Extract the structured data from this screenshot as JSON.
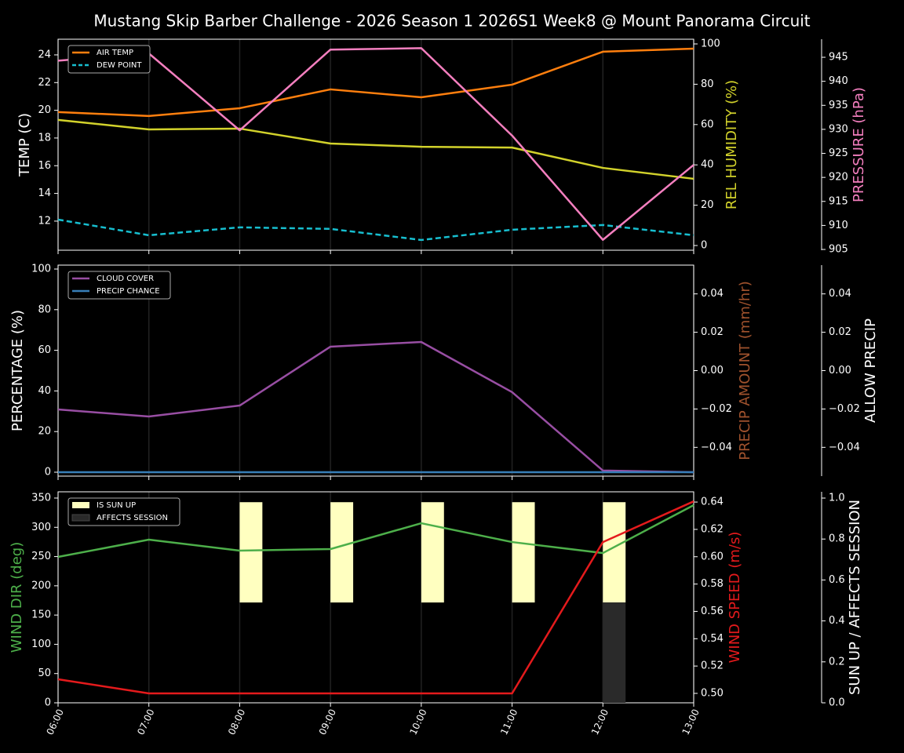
{
  "title": "Mustang Skip Barber Challenge - 2026 Season 1 2026S1 Week8 @ Mount Panorama Circuit",
  "chart_data": [
    {
      "type": "line",
      "legend": "upper left",
      "xgrid": true,
      "ylabel": "TEMP (C)",
      "ylabel_color": "#ffffff",
      "y2label": "REL HUMIDITY (%)",
      "y2label_color": "#d2d22b",
      "y3label": "PRESSURE (hPa)",
      "y3label_color": "#f47fbf",
      "ylim": [
        9.9,
        25.13
      ],
      "yticks": [
        12,
        14,
        16,
        18,
        20,
        22,
        24
      ],
      "y2lim": [
        -2.33,
        102.33
      ],
      "y2ticks": [
        0,
        20,
        40,
        60,
        80,
        100
      ],
      "y3lim": [
        904.84,
        948.76
      ],
      "y3ticks": [
        905,
        910,
        915,
        920,
        925,
        930,
        935,
        940,
        945
      ],
      "series": [
        {
          "name": "AIR TEMP",
          "color": "#ff7f0e",
          "values": [
            19.87,
            19.59,
            20.15,
            21.51,
            20.94,
            21.85,
            24.23,
            24.45
          ]
        },
        {
          "name": "DEW POINT",
          "color": "#17becf",
          "dash": true,
          "values": [
            12.11,
            10.98,
            11.55,
            11.44,
            10.64,
            11.38,
            11.72,
            10.98
          ]
        },
        {
          "color": "#d2d22b",
          "axis": "y2",
          "values": [
            62.3,
            57.6,
            58.0,
            50.6,
            49.0,
            48.6,
            38.5,
            33.1
          ]
        },
        {
          "color": "#f47fbf",
          "axis": "y3",
          "values": [
            944.3,
            945.8,
            929.8,
            946.6,
            946.9,
            928.7,
            907.0,
            922.6
          ]
        }
      ]
    },
    {
      "type": "line",
      "legend": "upper left",
      "xgrid": true,
      "ylabel": "PERCENTAGE (%)",
      "ylabel_color": "#ffffff",
      "y2label": "PRECIP AMOUNT (mm/hr)",
      "y2label_color": "#a0522d",
      "y3label": "ALLOW PRECIP",
      "y3label_color": "#ffffff",
      "ylim": [
        -1.93,
        101.93
      ],
      "yticks": [
        0,
        20,
        40,
        60,
        80,
        100
      ],
      "y2lim": [
        -0.055,
        0.055
      ],
      "y2ticks": [
        {
          "value": -0.04,
          "label": "−0.04"
        },
        {
          "value": -0.02,
          "label": "−0.02"
        },
        {
          "value": 0,
          "label": "0.00"
        },
        0.02,
        0.04
      ],
      "y3lim": [
        -0.055,
        0.055
      ],
      "y3ticks": [
        {
          "value": -0.04,
          "label": "−0.04"
        },
        {
          "value": -0.02,
          "label": "−0.02"
        },
        {
          "value": 0,
          "label": "0.00"
        },
        0.02,
        0.04
      ],
      "series": [
        {
          "name": "CLOUD COVER",
          "color": "#984ea3",
          "values": [
            30.9,
            27.4,
            32.8,
            61.8,
            64.1,
            39.4,
            0.8,
            0
          ]
        },
        {
          "name": "PRECIP CHANCE",
          "color": "#377eb8",
          "values": [
            0,
            0,
            0,
            0,
            0,
            0,
            0,
            0
          ]
        }
      ]
    },
    {
      "type": "line",
      "legend": "upper left",
      "xgrid": true,
      "categories": [
        "06:00",
        "07:00",
        "08:00",
        "09:00",
        "10:00",
        "11:00",
        "12:00",
        "13:00"
      ],
      "ylabel": "WIND DIR (deg)",
      "ylabel_color": "#4daf4a",
      "y2label": "WIND SPEED (m/s)",
      "y2label_color": "#e41a1c",
      "y3label": "SUN UP / AFFECTS SESSION",
      "y3label_color": "#ffffff",
      "ylim": [
        0,
        360.7
      ],
      "yticks": [
        0,
        50,
        100,
        150,
        200,
        250,
        300,
        350
      ],
      "y2lim": [
        0.4931,
        0.6475
      ],
      "y2ticks": [
        {
          "value": 0.5,
          "label": "0.50"
        },
        0.52,
        0.54,
        0.56,
        0.58,
        {
          "value": 0.6,
          "label": "0.60"
        },
        0.62,
        0.64
      ],
      "y3lim": [
        0,
        1.0307
      ],
      "y3ticks": [
        {
          "value": 0,
          "label": "0.0"
        },
        0.2,
        0.4,
        0.6,
        0.8,
        {
          "value": 1,
          "label": "1.0"
        }
      ],
      "series": [
        {
          "name": "IS SUN UP",
          "type": "bar",
          "axis": "y3",
          "color": "#ffffc0",
          "low": [
            null,
            null,
            0.49,
            0.49,
            0.49,
            0.49,
            0.49,
            null
          ],
          "values": [
            null,
            null,
            0.98,
            0.98,
            0.98,
            0.98,
            0.98,
            null
          ]
        },
        {
          "name": "AFFECTS SESSION",
          "type": "bar",
          "axis": "y3",
          "color": "#2a2a2a",
          "values": [
            null,
            null,
            null,
            null,
            null,
            null,
            0.49,
            null
          ]
        },
        {
          "color": "#4daf4a",
          "values": [
            249.4,
            278.9,
            260.2,
            262.8,
            307.0,
            274.8,
            256.0,
            337.9
          ]
        },
        {
          "color": "#e41a1c",
          "axis": "y2",
          "values": [
            0.5103,
            0.5,
            0.5,
            0.5,
            0.5,
            0.5,
            0.6107,
            0.6405
          ]
        }
      ]
    }
  ]
}
